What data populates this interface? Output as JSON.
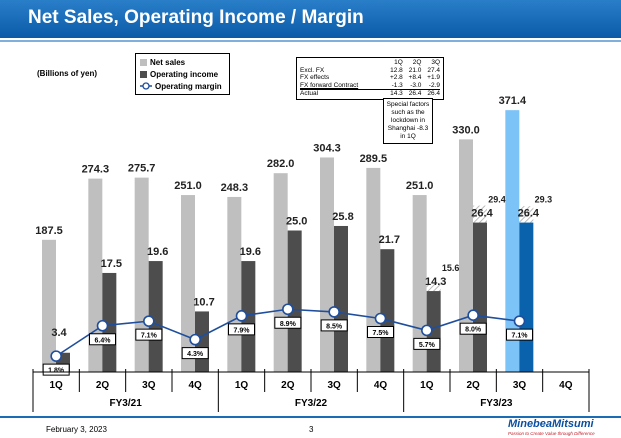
{
  "title": "Net Sales, Operating Income / Margin",
  "unit": "(Billions of yen)",
  "legend": {
    "net_sales": "Net sales",
    "operating_income": "Operating income",
    "operating_margin": "Operating margin"
  },
  "fx_table": {
    "headers": [
      "",
      "1Q",
      "2Q",
      "3Q"
    ],
    "rows": [
      [
        "Excl. FX",
        "12.8",
        "21.0",
        "27.4"
      ],
      [
        "FX effects",
        "+2.8",
        "+8.4",
        "+1.9"
      ],
      [
        "FX forward Contract",
        "-1.3",
        "-3.0",
        "-2.9"
      ],
      [
        "Actual",
        "14.3",
        "26.4",
        "26.4"
      ]
    ]
  },
  "note": "Special factors such as the lockdown in Shanghai -8.3 in 1Q",
  "footer": {
    "date": "February 3, 2023",
    "page": "3",
    "logo": "MinebeaMitsumi",
    "tagline": "Passion to Create Value through Difference"
  },
  "colors": {
    "net_sales": "#bfbfbf",
    "operating_income": "#4d4d4d",
    "margin_line": "#1f4e9c",
    "highlight_net_sales": "#7cc3f7",
    "highlight_operating_income": "#0a62ad"
  },
  "chart_data": {
    "type": "bar",
    "quarters": [
      "1Q",
      "2Q",
      "3Q",
      "4Q",
      "1Q",
      "2Q",
      "3Q",
      "4Q",
      "1Q",
      "2Q",
      "3Q",
      "4Q"
    ],
    "fiscal_years": [
      "FY3/21",
      "FY3/22",
      "FY3/23"
    ],
    "series": [
      {
        "name": "Net sales",
        "values": [
          187.5,
          274.3,
          275.7,
          251.0,
          248.3,
          282.0,
          304.3,
          289.5,
          251.0,
          330.0,
          371.4,
          null
        ],
        "labels": [
          "187.5",
          "274.3",
          "275.7",
          "251.0",
          "248.3",
          "282.0",
          "304.3",
          "289.5",
          "251.0",
          "330.0",
          "371.4",
          ""
        ]
      },
      {
        "name": "Operating income",
        "values": [
          3.4,
          17.5,
          19.6,
          10.7,
          19.6,
          25.0,
          25.8,
          21.7,
          14.3,
          26.4,
          26.4,
          null
        ],
        "labels": [
          "3.4",
          "17.5",
          "19.6",
          "10.7",
          "19.6",
          "25.0",
          "25.8",
          "21.7",
          "14.3",
          "26.4",
          "26.4",
          ""
        ]
      },
      {
        "name": "Operating income excl. FX forward contract (hatched)",
        "values": [
          null,
          null,
          null,
          null,
          null,
          null,
          null,
          null,
          15.6,
          29.4,
          29.3,
          null
        ],
        "labels": [
          "",
          "",
          "",
          "",
          "",
          "",
          "",
          "",
          "15.6",
          "29.4",
          "29.3",
          ""
        ]
      },
      {
        "name": "Operating margin",
        "values": [
          1.8,
          6.4,
          7.1,
          4.3,
          7.9,
          8.9,
          8.5,
          7.5,
          5.7,
          8.0,
          7.1,
          null
        ],
        "labels": [
          "1.8%",
          "6.4%",
          "7.1%",
          "4.3%",
          "7.9%",
          "8.9%",
          "8.5%",
          "7.5%",
          "5.7%",
          "8.0%",
          "7.1%",
          ""
        ]
      }
    ],
    "highlight_index": 10,
    "ylabel": "(Billions of yen)"
  }
}
